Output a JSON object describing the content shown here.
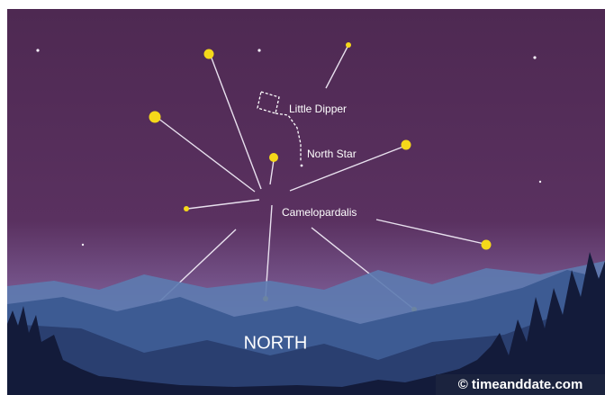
{
  "labels": {
    "little_dipper": "Little Dipper",
    "north_star": "North Star",
    "constellation": "Camelopardalis",
    "direction": "NORTH"
  },
  "footer": {
    "credit": "© timeanddate.com"
  }
}
